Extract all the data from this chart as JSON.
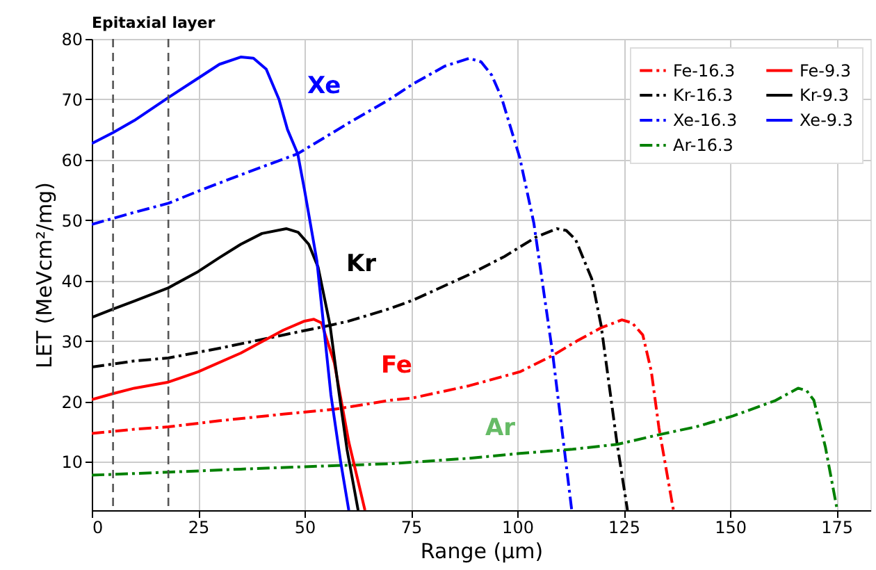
{
  "chart_data": {
    "type": "line",
    "xlabel": "Range (μm)",
    "ylabel": "LET (MeVcm²/mg)",
    "xlim": [
      0,
      183
    ],
    "ylim": [
      2,
      80
    ],
    "xticks": [
      0,
      25,
      50,
      75,
      100,
      125,
      150,
      175
    ],
    "yticks": [
      10,
      20,
      30,
      40,
      50,
      60,
      70,
      80
    ],
    "grid": true,
    "legend": "top right",
    "marker": "none",
    "series": [
      {
        "name": "Fe-16.3",
        "color": "#ff0000",
        "line_style": "dashdot",
        "x": [
          0,
          10,
          18,
          30,
          45,
          57,
          70.2,
          75.6,
          88.7,
          100.6,
          108.3,
          114,
          119.7,
          124.6,
          127,
          129.5,
          131.5,
          133.3,
          136.7
        ],
        "values": [
          14.7,
          15.4,
          15.8,
          16.8,
          17.9,
          18.7,
          20.2,
          20.6,
          22.6,
          24.9,
          27.6,
          30,
          32.2,
          33.5,
          33,
          31,
          25,
          15.6,
          2
        ]
      },
      {
        "name": "Kr-16.3",
        "color": "#000000",
        "line_style": "dashdot",
        "x": [
          0,
          5,
          10,
          18,
          30,
          45,
          56,
          60.4,
          70.2,
          75.6,
          88.7,
          97,
          104.4,
          109.3,
          111.5,
          113.7,
          117.5,
          119.7,
          123.4,
          125.9
        ],
        "values": [
          25.7,
          26.2,
          26.7,
          27.2,
          28.8,
          31,
          32.6,
          33.3,
          35.4,
          36.8,
          41,
          44,
          47.2,
          48.6,
          48.3,
          46.8,
          40.3,
          32.6,
          13.3,
          2
        ]
      },
      {
        "name": "Xe-16.3",
        "color": "#0000ff",
        "line_style": "dashdot",
        "x": [
          0,
          5,
          10,
          18,
          25,
          35,
          48.4,
          60.4,
          70.2,
          75.6,
          83,
          88.7,
          91.5,
          94,
          96.3,
          100.6,
          103.9,
          108.3,
          112.8
        ],
        "values": [
          49.3,
          50.3,
          51.3,
          52.8,
          54.8,
          57.5,
          61,
          66.1,
          70.1,
          72.6,
          75.5,
          76.8,
          76.2,
          74,
          70.3,
          60.3,
          49.5,
          28,
          2
        ]
      },
      {
        "name": "Ar-16.3",
        "color": "#008000",
        "line_style": "dashdot",
        "x": [
          0,
          18,
          35,
          50,
          70.2,
          88.7,
          100.6,
          113,
          123.5,
          133.3,
          142,
          150.7,
          160.5,
          166,
          168,
          169.7,
          172.4,
          175.2
        ],
        "values": [
          7.8,
          8.3,
          8.8,
          9.2,
          9.7,
          10.6,
          11.4,
          12.1,
          12.9,
          14.5,
          15.8,
          17.6,
          20.1,
          22.2,
          21.8,
          20.2,
          12.5,
          2
        ]
      },
      {
        "name": "Fe-9.3",
        "color": "#ff0000",
        "line_style": "solid",
        "x": [
          0,
          5,
          10,
          18,
          25,
          35,
          45,
          50,
          52.2,
          54,
          57,
          60.4,
          64.2
        ],
        "values": [
          20.3,
          21.3,
          22.2,
          23.2,
          24.9,
          28,
          31.8,
          33.3,
          33.6,
          33,
          26.4,
          13.3,
          2
        ]
      },
      {
        "name": "Kr-9.3",
        "color": "#000000",
        "line_style": "solid",
        "x": [
          0,
          5,
          10,
          18,
          25,
          30,
          35,
          40,
          45.7,
          48.5,
          51,
          53.2,
          56,
          58,
          60,
          62.6
        ],
        "values": [
          33.9,
          35.3,
          36.6,
          38.8,
          41.5,
          43.8,
          46,
          47.8,
          48.6,
          48,
          46,
          42.2,
          32.6,
          22,
          12,
          2
        ]
      },
      {
        "name": "Xe-9.3",
        "color": "#0000ff",
        "line_style": "solid",
        "x": [
          0,
          5,
          10,
          18,
          25,
          30,
          35,
          38,
          41,
          44,
          46,
          48.4,
          50,
          52.9,
          56.2,
          58.5,
          60.4
        ],
        "values": [
          62.7,
          64.5,
          66.5,
          70.3,
          73.5,
          75.8,
          77,
          76.8,
          75,
          70,
          65,
          61,
          55,
          43.3,
          21.1,
          10,
          2
        ]
      }
    ],
    "ref_lines": [
      {
        "axis": "x",
        "value": 5,
        "color": "#555555",
        "line_style": "dashed"
      },
      {
        "axis": "x",
        "value": 18,
        "color": "#555555",
        "line_style": "dashed"
      }
    ],
    "annotations": [
      "Epitaxial layer",
      "Xe",
      "Kr",
      "Fe",
      "Ar"
    ]
  }
}
